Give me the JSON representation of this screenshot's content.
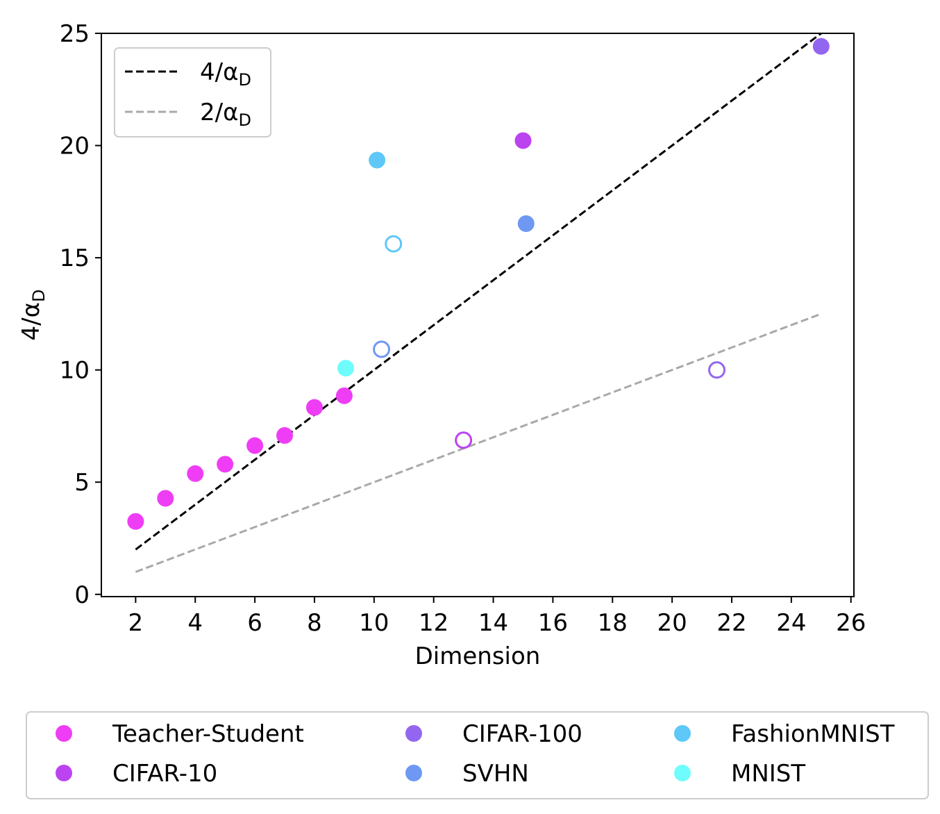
{
  "chart_data": {
    "type": "scatter",
    "xlabel": "Dimension",
    "ylabel_main": "4/α",
    "ylabel_sub": "D",
    "xlim": [
      0.85,
      26.1
    ],
    "ylim": [
      -0.1,
      25
    ],
    "xticks": [
      2,
      4,
      6,
      8,
      10,
      12,
      14,
      16,
      18,
      20,
      22,
      24,
      26
    ],
    "yticks": [
      0,
      5,
      10,
      15,
      20,
      25
    ],
    "grid": false,
    "lines": [
      {
        "label_main": "4/α",
        "label_sub": "D",
        "color": "#000000",
        "x": [
          2,
          25
        ],
        "y": [
          2,
          25
        ],
        "style": "dashed"
      },
      {
        "label_main": "2/α",
        "label_sub": "D",
        "color": "#a9a9a9",
        "x": [
          2,
          25
        ],
        "y": [
          1,
          12.5
        ],
        "style": "dashed"
      }
    ],
    "line_legend_position": "top-left",
    "series": [
      {
        "name": "Teacher-Student",
        "color": "#ef3df5",
        "points": [
          {
            "x": 2,
            "y": 3.25,
            "filled": true
          },
          {
            "x": 3,
            "y": 4.28,
            "filled": true
          },
          {
            "x": 4,
            "y": 5.38,
            "filled": true
          },
          {
            "x": 5,
            "y": 5.8,
            "filled": true
          },
          {
            "x": 6,
            "y": 6.63,
            "filled": true
          },
          {
            "x": 7,
            "y": 7.08,
            "filled": true
          },
          {
            "x": 8,
            "y": 8.33,
            "filled": true
          },
          {
            "x": 9,
            "y": 8.85,
            "filled": true
          }
        ]
      },
      {
        "name": "CIFAR-10",
        "color": "#bb44f0",
        "points": [
          {
            "x": 15,
            "y": 20.22,
            "filled": true
          },
          {
            "x": 13,
            "y": 6.87,
            "filled": false
          }
        ]
      },
      {
        "name": "CIFAR-100",
        "color": "#9366ef",
        "points": [
          {
            "x": 25,
            "y": 24.42,
            "filled": true
          },
          {
            "x": 21.5,
            "y": 10.0,
            "filled": false
          }
        ]
      },
      {
        "name": "SVHN",
        "color": "#6f98f3",
        "points": [
          {
            "x": 15.1,
            "y": 16.52,
            "filled": true
          },
          {
            "x": 10.25,
            "y": 10.92,
            "filled": false
          }
        ]
      },
      {
        "name": "FashionMNIST",
        "color": "#5ec8f8",
        "points": [
          {
            "x": 10.1,
            "y": 19.35,
            "filled": true
          },
          {
            "x": 10.65,
            "y": 15.62,
            "filled": false
          }
        ]
      },
      {
        "name": "MNIST",
        "color": "#6ffcfc",
        "points": [
          {
            "x": 9.05,
            "y": 10.08,
            "filled": true
          }
        ]
      }
    ],
    "series_legend_position": "bottom",
    "series_legend_columns": [
      [
        "Teacher-Student",
        "CIFAR-10"
      ],
      [
        "CIFAR-100",
        "SVHN"
      ],
      [
        "FashionMNIST",
        "MNIST"
      ]
    ]
  }
}
